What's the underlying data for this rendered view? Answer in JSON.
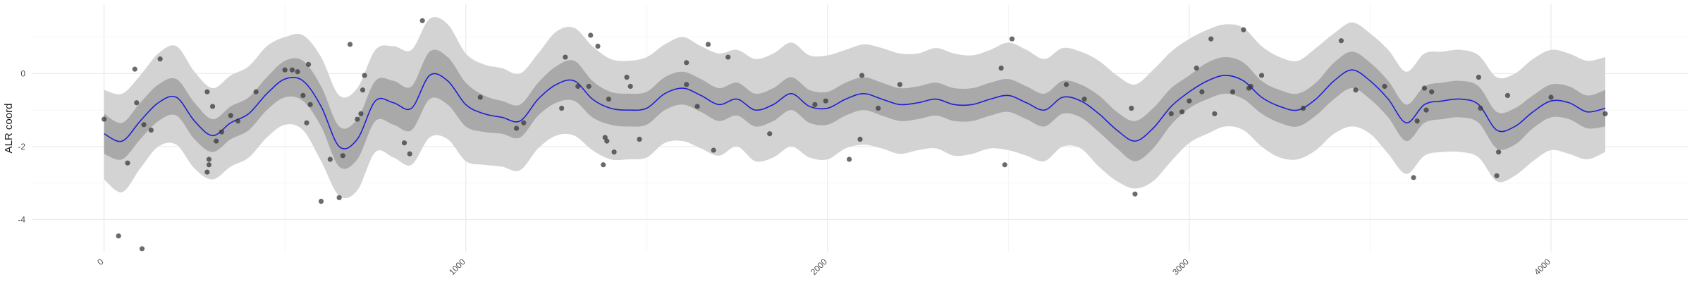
{
  "chart_data": {
    "type": "line",
    "title": "",
    "xlabel": "",
    "ylabel": "ALR coord",
    "xlim": [
      -200,
      4380
    ],
    "ylim": [
      -4.9,
      1.9
    ],
    "x_ticks": [
      0,
      1000,
      2000,
      3000,
      4000
    ],
    "x_tick_labels": [
      "0",
      "1000",
      "2000",
      "3000",
      "4000"
    ],
    "y_ticks": [
      0,
      -2,
      -4
    ],
    "y_tick_labels": [
      "0",
      "-2",
      "-4"
    ],
    "grid": true,
    "legend": "none",
    "colors": {
      "mean_line": "#1f1fd6",
      "inner_band": "#a9a9a9",
      "outer_band": "#d3d3d3",
      "points": "#3a3a3a",
      "grid_major": "#ebebeb",
      "grid_minor": "#f4f4f4"
    },
    "series": [
      {
        "kind": "mean",
        "x": [
          0,
          50,
          100,
          150,
          200,
          250,
          300,
          350,
          400,
          450,
          500,
          550,
          600,
          650,
          700,
          750,
          800,
          850,
          900,
          950,
          1000,
          1050,
          1100,
          1150,
          1200,
          1250,
          1300,
          1350,
          1400,
          1450,
          1500,
          1550,
          1600,
          1650,
          1700,
          1750,
          1800,
          1850,
          1900,
          1950,
          2000,
          2050,
          2100,
          2150,
          2200,
          2250,
          2300,
          2350,
          2400,
          2450,
          2500,
          2550,
          2600,
          2650,
          2700,
          2750,
          2800,
          2850,
          2900,
          2950,
          3000,
          3050,
          3100,
          3150,
          3200,
          3250,
          3300,
          3350,
          3400,
          3450,
          3500,
          3550,
          3600,
          3650,
          3700,
          3750,
          3800,
          3850,
          3900,
          3950,
          4000,
          4050,
          4100,
          4150
        ],
        "y": [
          -1.65,
          -1.85,
          -1.3,
          -0.8,
          -0.65,
          -1.3,
          -1.7,
          -1.35,
          -1.1,
          -0.55,
          -0.15,
          -0.2,
          -0.9,
          -2.0,
          -1.8,
          -0.75,
          -0.8,
          -0.95,
          -0.05,
          -0.2,
          -0.85,
          -1.1,
          -1.2,
          -1.3,
          -0.7,
          -0.3,
          -0.2,
          -0.7,
          -0.95,
          -1.0,
          -0.95,
          -0.55,
          -0.4,
          -0.6,
          -0.85,
          -0.7,
          -1.0,
          -0.85,
          -0.55,
          -0.9,
          -0.95,
          -0.7,
          -0.55,
          -0.7,
          -0.85,
          -0.8,
          -0.7,
          -0.85,
          -0.85,
          -0.7,
          -0.6,
          -0.8,
          -1.0,
          -0.65,
          -0.75,
          -1.1,
          -1.55,
          -1.85,
          -1.5,
          -0.9,
          -0.5,
          -0.2,
          -0.05,
          -0.2,
          -0.65,
          -0.9,
          -1.0,
          -0.7,
          -0.2,
          0.1,
          -0.2,
          -0.7,
          -1.35,
          -0.85,
          -0.75,
          -0.7,
          -0.85,
          -1.55,
          -1.45,
          -1.05,
          -0.75,
          -0.8,
          -1.05,
          -0.95
        ]
      },
      {
        "kind": "inner_band",
        "x": [
          0,
          50,
          100,
          150,
          200,
          250,
          300,
          350,
          400,
          450,
          500,
          550,
          600,
          650,
          700,
          750,
          800,
          850,
          900,
          950,
          1000,
          1050,
          1100,
          1150,
          1200,
          1250,
          1300,
          1350,
          1400,
          1450,
          1500,
          1550,
          1600,
          1650,
          1700,
          1750,
          1800,
          1850,
          1900,
          1950,
          2000,
          2050,
          2100,
          2150,
          2200,
          2250,
          2300,
          2350,
          2400,
          2450,
          2500,
          2550,
          2600,
          2650,
          2700,
          2750,
          2800,
          2850,
          2900,
          2950,
          3000,
          3050,
          3100,
          3150,
          3200,
          3250,
          3300,
          3350,
          3400,
          3450,
          3500,
          3550,
          3600,
          3650,
          3700,
          3750,
          3800,
          3850,
          3900,
          3950,
          4000,
          4050,
          4100,
          4150
        ],
        "lower": [
          -2.2,
          -2.35,
          -1.8,
          -1.3,
          -1.15,
          -1.8,
          -2.15,
          -1.8,
          -1.55,
          -1.0,
          -0.65,
          -0.75,
          -1.45,
          -2.55,
          -2.35,
          -1.3,
          -1.4,
          -1.55,
          -0.7,
          -0.85,
          -1.45,
          -1.6,
          -1.65,
          -1.75,
          -1.15,
          -0.8,
          -0.75,
          -1.2,
          -1.4,
          -1.45,
          -1.4,
          -1.0,
          -0.85,
          -1.05,
          -1.3,
          -1.15,
          -1.45,
          -1.3,
          -1.0,
          -1.35,
          -1.4,
          -1.15,
          -1.0,
          -1.15,
          -1.3,
          -1.25,
          -1.15,
          -1.3,
          -1.3,
          -1.15,
          -1.05,
          -1.25,
          -1.45,
          -1.1,
          -1.2,
          -1.6,
          -2.05,
          -2.4,
          -2.05,
          -1.4,
          -0.95,
          -0.7,
          -0.55,
          -0.7,
          -1.1,
          -1.35,
          -1.45,
          -1.15,
          -0.7,
          -0.4,
          -0.7,
          -1.2,
          -1.85,
          -1.35,
          -1.25,
          -1.2,
          -1.35,
          -2.05,
          -1.95,
          -1.5,
          -1.2,
          -1.25,
          -1.5,
          -1.45
        ],
        "upper": [
          -1.1,
          -1.35,
          -0.8,
          -0.3,
          -0.15,
          -0.8,
          -1.25,
          -0.9,
          -0.65,
          -0.1,
          0.35,
          0.35,
          -0.35,
          -1.45,
          -1.25,
          -0.2,
          -0.2,
          -0.35,
          0.6,
          0.45,
          -0.25,
          -0.6,
          -0.75,
          -0.85,
          -0.25,
          0.2,
          0.35,
          -0.2,
          -0.5,
          -0.55,
          -0.5,
          -0.1,
          0.05,
          -0.15,
          -0.4,
          -0.25,
          -0.55,
          -0.4,
          -0.1,
          -0.45,
          -0.5,
          -0.25,
          -0.1,
          -0.25,
          -0.4,
          -0.35,
          -0.25,
          -0.4,
          -0.4,
          -0.25,
          -0.15,
          -0.35,
          -0.55,
          -0.2,
          -0.3,
          -0.6,
          -1.05,
          -1.3,
          -0.95,
          -0.4,
          -0.05,
          0.3,
          0.45,
          0.3,
          -0.2,
          -0.45,
          -0.55,
          -0.25,
          0.3,
          0.6,
          0.3,
          -0.2,
          -0.85,
          -0.35,
          -0.25,
          -0.2,
          -0.35,
          -1.05,
          -0.95,
          -0.6,
          -0.3,
          -0.35,
          -0.6,
          -0.45
        ]
      },
      {
        "kind": "outer_band",
        "x": [
          0,
          50,
          100,
          150,
          200,
          250,
          300,
          350,
          400,
          450,
          500,
          550,
          600,
          650,
          700,
          750,
          800,
          850,
          900,
          950,
          1000,
          1050,
          1100,
          1150,
          1200,
          1250,
          1300,
          1350,
          1400,
          1450,
          1500,
          1550,
          1600,
          1650,
          1700,
          1750,
          1800,
          1850,
          1900,
          1950,
          2000,
          2050,
          2100,
          2150,
          2200,
          2250,
          2300,
          2350,
          2400,
          2450,
          2500,
          2550,
          2600,
          2650,
          2700,
          2750,
          2800,
          2850,
          2900,
          2950,
          3000,
          3050,
          3100,
          3150,
          3200,
          3250,
          3300,
          3350,
          3400,
          3450,
          3500,
          3550,
          3600,
          3650,
          3700,
          3750,
          3800,
          3850,
          3900,
          3950,
          4000,
          4050,
          4100,
          4150
        ],
        "lower": [
          -2.9,
          -3.25,
          -2.6,
          -2.0,
          -1.95,
          -2.6,
          -2.9,
          -2.55,
          -2.3,
          -1.75,
          -1.4,
          -1.55,
          -2.4,
          -3.35,
          -3.2,
          -2.15,
          -2.3,
          -2.5,
          -1.75,
          -1.8,
          -2.4,
          -2.5,
          -2.55,
          -2.65,
          -2.05,
          -1.7,
          -1.7,
          -2.1,
          -2.35,
          -2.35,
          -2.3,
          -1.9,
          -1.85,
          -2.05,
          -2.25,
          -2.0,
          -2.4,
          -2.3,
          -2.0,
          -2.3,
          -2.35,
          -2.05,
          -1.95,
          -2.05,
          -2.2,
          -2.1,
          -2.05,
          -2.25,
          -2.2,
          -2.05,
          -2.1,
          -2.25,
          -2.4,
          -2.0,
          -2.05,
          -2.55,
          -2.95,
          -3.15,
          -2.95,
          -2.4,
          -1.9,
          -1.65,
          -1.45,
          -1.55,
          -2.0,
          -2.3,
          -2.35,
          -2.1,
          -1.65,
          -1.45,
          -1.65,
          -2.2,
          -2.75,
          -2.25,
          -2.15,
          -2.15,
          -2.3,
          -2.95,
          -2.8,
          -2.4,
          -2.1,
          -2.2,
          -2.35,
          -2.15
        ],
        "upper": [
          -0.45,
          -0.55,
          -0.05,
          0.55,
          0.75,
          0.05,
          -0.4,
          -0.05,
          0.2,
          0.75,
          1.0,
          1.05,
          0.45,
          -0.6,
          -0.4,
          0.65,
          0.75,
          0.65,
          1.5,
          1.35,
          0.55,
          0.25,
          0.15,
          0.0,
          0.55,
          1.15,
          1.25,
          0.75,
          0.4,
          0.35,
          0.45,
          0.8,
          1.0,
          0.75,
          0.55,
          0.65,
          0.4,
          0.55,
          0.85,
          0.5,
          0.5,
          0.65,
          0.8,
          0.7,
          0.55,
          0.55,
          0.7,
          0.55,
          0.5,
          0.65,
          0.85,
          0.65,
          0.4,
          0.7,
          0.6,
          0.35,
          -0.05,
          -0.3,
          0.1,
          0.6,
          0.95,
          1.2,
          1.35,
          1.25,
          0.75,
          0.45,
          0.35,
          0.7,
          1.1,
          1.4,
          1.1,
          0.65,
          0.05,
          0.55,
          0.6,
          0.65,
          0.5,
          -0.1,
          0.0,
          0.4,
          0.65,
          0.55,
          0.35,
          0.45
        ]
      }
    ],
    "points": [
      {
        "x": 0,
        "y": -1.25
      },
      {
        "x": 40,
        "y": -4.45
      },
      {
        "x": 65,
        "y": -2.45
      },
      {
        "x": 85,
        "y": 0.12
      },
      {
        "x": 90,
        "y": -0.8
      },
      {
        "x": 105,
        "y": -4.8
      },
      {
        "x": 110,
        "y": -1.4
      },
      {
        "x": 130,
        "y": -1.55
      },
      {
        "x": 155,
        "y": 0.4
      },
      {
        "x": 285,
        "y": -0.5
      },
      {
        "x": 285,
        "y": -2.7
      },
      {
        "x": 290,
        "y": -2.5
      },
      {
        "x": 290,
        "y": -2.35
      },
      {
        "x": 300,
        "y": -0.9
      },
      {
        "x": 310,
        "y": -1.85
      },
      {
        "x": 325,
        "y": -1.6
      },
      {
        "x": 350,
        "y": -1.15
      },
      {
        "x": 370,
        "y": -1.3
      },
      {
        "x": 420,
        "y": -0.5
      },
      {
        "x": 500,
        "y": 0.1
      },
      {
        "x": 520,
        "y": 0.1
      },
      {
        "x": 535,
        "y": 0.05
      },
      {
        "x": 550,
        "y": -0.6
      },
      {
        "x": 560,
        "y": -1.35
      },
      {
        "x": 565,
        "y": 0.25
      },
      {
        "x": 570,
        "y": -0.85
      },
      {
        "x": 600,
        "y": -3.5
      },
      {
        "x": 625,
        "y": -2.35
      },
      {
        "x": 650,
        "y": -3.4
      },
      {
        "x": 660,
        "y": -2.25
      },
      {
        "x": 680,
        "y": 0.8
      },
      {
        "x": 700,
        "y": -1.25
      },
      {
        "x": 710,
        "y": -1.1
      },
      {
        "x": 715,
        "y": -0.45
      },
      {
        "x": 720,
        "y": -0.05
      },
      {
        "x": 830,
        "y": -1.9
      },
      {
        "x": 845,
        "y": -2.2
      },
      {
        "x": 880,
        "y": 1.45
      },
      {
        "x": 1040,
        "y": -0.65
      },
      {
        "x": 1140,
        "y": -1.5
      },
      {
        "x": 1160,
        "y": -1.35
      },
      {
        "x": 1265,
        "y": -0.95
      },
      {
        "x": 1275,
        "y": 0.45
      },
      {
        "x": 1310,
        "y": -0.35
      },
      {
        "x": 1340,
        "y": -0.35
      },
      {
        "x": 1345,
        "y": 1.05
      },
      {
        "x": 1365,
        "y": 0.75
      },
      {
        "x": 1380,
        "y": -2.5
      },
      {
        "x": 1385,
        "y": -1.75
      },
      {
        "x": 1390,
        "y": -1.85
      },
      {
        "x": 1395,
        "y": -0.7
      },
      {
        "x": 1410,
        "y": -2.15
      },
      {
        "x": 1445,
        "y": -0.1
      },
      {
        "x": 1455,
        "y": -0.35
      },
      {
        "x": 1480,
        "y": -1.8
      },
      {
        "x": 1610,
        "y": 0.3
      },
      {
        "x": 1610,
        "y": -0.3
      },
      {
        "x": 1640,
        "y": -0.9
      },
      {
        "x": 1670,
        "y": 0.8
      },
      {
        "x": 1685,
        "y": -2.1
      },
      {
        "x": 1725,
        "y": 0.45
      },
      {
        "x": 1840,
        "y": -1.65
      },
      {
        "x": 1965,
        "y": -0.85
      },
      {
        "x": 1995,
        "y": -0.75
      },
      {
        "x": 2060,
        "y": -2.35
      },
      {
        "x": 2090,
        "y": -1.8
      },
      {
        "x": 2095,
        "y": -0.05
      },
      {
        "x": 2140,
        "y": -0.95
      },
      {
        "x": 2200,
        "y": -0.3
      },
      {
        "x": 2480,
        "y": 0.15
      },
      {
        "x": 2490,
        "y": -2.5
      },
      {
        "x": 2510,
        "y": 0.95
      },
      {
        "x": 2660,
        "y": -0.3
      },
      {
        "x": 2710,
        "y": -0.7
      },
      {
        "x": 2840,
        "y": -0.95
      },
      {
        "x": 2850,
        "y": -3.3
      },
      {
        "x": 2950,
        "y": -1.1
      },
      {
        "x": 2980,
        "y": -1.05
      },
      {
        "x": 3000,
        "y": -0.75
      },
      {
        "x": 3020,
        "y": 0.15
      },
      {
        "x": 3035,
        "y": -0.5
      },
      {
        "x": 3060,
        "y": 0.95
      },
      {
        "x": 3070,
        "y": -1.1
      },
      {
        "x": 3120,
        "y": -0.5
      },
      {
        "x": 3150,
        "y": 1.2
      },
      {
        "x": 3165,
        "y": -0.4
      },
      {
        "x": 3170,
        "y": -0.35
      },
      {
        "x": 3200,
        "y": -0.05
      },
      {
        "x": 3315,
        "y": -0.95
      },
      {
        "x": 3420,
        "y": 0.9
      },
      {
        "x": 3460,
        "y": -0.45
      },
      {
        "x": 3540,
        "y": -0.35
      },
      {
        "x": 3620,
        "y": -2.85
      },
      {
        "x": 3630,
        "y": -1.3
      },
      {
        "x": 3650,
        "y": -0.4
      },
      {
        "x": 3655,
        "y": -1.0
      },
      {
        "x": 3670,
        "y": -0.5
      },
      {
        "x": 3800,
        "y": -0.1
      },
      {
        "x": 3805,
        "y": -0.95
      },
      {
        "x": 3850,
        "y": -2.8
      },
      {
        "x": 3855,
        "y": -2.15
      },
      {
        "x": 3880,
        "y": -0.6
      },
      {
        "x": 4000,
        "y": -0.65
      },
      {
        "x": 4150,
        "y": -1.1
      }
    ]
  }
}
